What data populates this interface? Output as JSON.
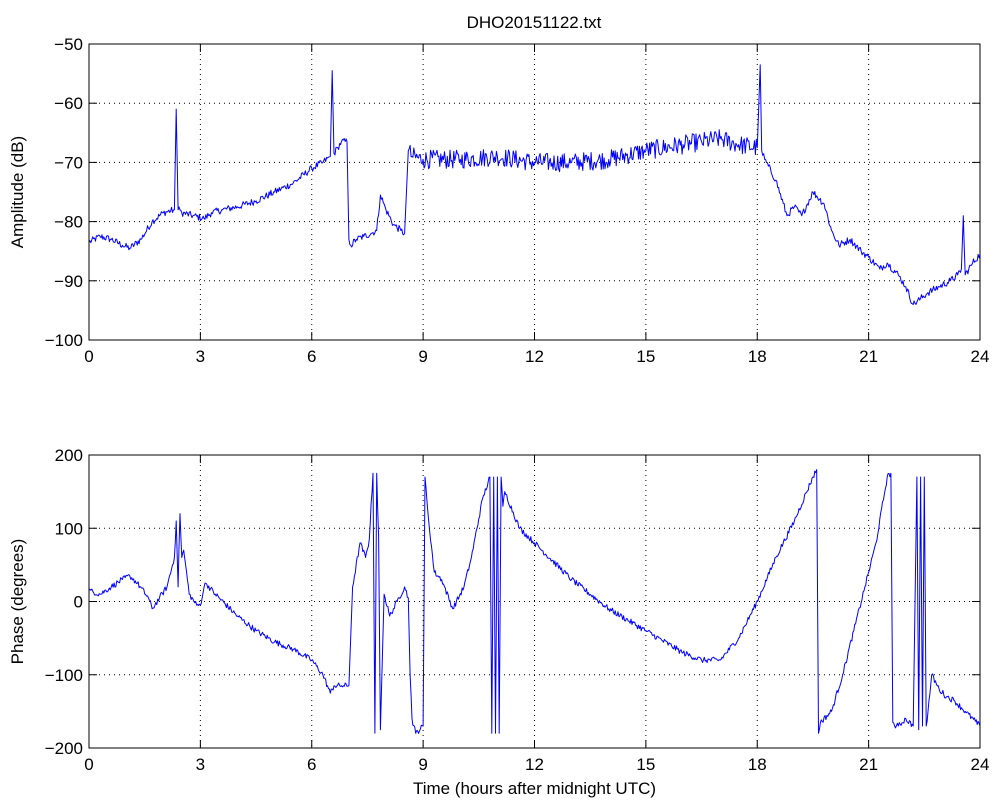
{
  "title": "DHO20151122.txt",
  "colors": {
    "series": "#0000ff",
    "axes": "#000000",
    "background": "#ffffff"
  },
  "chart_data": [
    {
      "type": "line",
      "title": "DHO20151122.txt",
      "xlabel": "",
      "ylabel": "Amplitude (dB)",
      "xlim": [
        0,
        24
      ],
      "ylim": [
        -100,
        -50
      ],
      "xticks": [
        0,
        3,
        6,
        9,
        12,
        15,
        18,
        21,
        24
      ],
      "yticks": [
        -100,
        -90,
        -80,
        -70,
        -60,
        -50
      ],
      "xtick_labels": [
        "0",
        "3",
        "6",
        "9",
        "12",
        "15",
        "18",
        "21",
        "24"
      ],
      "ytick_labels": [
        "−100",
        "−90",
        "−80",
        "−70",
        "−60",
        "−50"
      ],
      "grid": true,
      "series": [
        {
          "x": [
            0,
            0.3,
            0.6,
            0.9,
            1.1,
            1.4,
            1.7,
            2.0,
            2.3,
            2.35,
            2.4,
            2.45,
            2.5,
            2.8,
            3.1,
            3.3,
            3.6,
            4.0,
            4.5,
            5.0,
            5.5,
            6.0,
            6.3,
            6.5,
            6.55,
            6.6,
            6.7,
            6.8,
            6.95,
            7.0,
            7.05,
            7.2,
            7.4,
            7.6,
            7.75,
            7.85,
            8.0,
            8.2,
            8.4,
            8.5,
            8.6,
            8.7,
            9.0,
            10.0,
            11.0,
            12.0,
            13.0,
            14.0,
            15.0,
            16.0,
            16.5,
            17.0,
            17.5,
            18.0,
            18.08,
            18.12,
            18.2,
            18.5,
            18.8,
            19.0,
            19.2,
            19.5,
            19.8,
            20.0,
            20.2,
            20.5,
            20.8,
            21.0,
            21.3,
            21.5,
            21.8,
            22.0,
            22.2,
            22.4,
            22.6,
            22.9,
            23.2,
            23.4,
            23.5,
            23.55,
            23.6,
            23.8,
            24.0
          ],
          "y": [
            -83.5,
            -82.5,
            -83.0,
            -84.0,
            -84.5,
            -83.0,
            -80.0,
            -78.5,
            -78.0,
            -61.0,
            -78.0,
            -78.0,
            -78.5,
            -79.0,
            -79.5,
            -78.5,
            -78.0,
            -77.5,
            -76.5,
            -75.0,
            -73.5,
            -71.0,
            -70.0,
            -69.0,
            -54.5,
            -68.5,
            -67.5,
            -66.5,
            -66.5,
            -83.0,
            -84.0,
            -83.0,
            -82.5,
            -82.0,
            -81.5,
            -75.5,
            -78.0,
            -80.5,
            -81.5,
            -82.0,
            -68.0,
            -69.0,
            -69.5,
            -69.5,
            -69.0,
            -70.0,
            -70.0,
            -69.5,
            -68.0,
            -67.0,
            -66.5,
            -66.0,
            -67.0,
            -67.5,
            -53.5,
            -68.0,
            -69.5,
            -73.0,
            -79.0,
            -77.5,
            -79.0,
            -75.0,
            -77.0,
            -81.5,
            -84.0,
            -83.0,
            -85.0,
            -86.0,
            -88.0,
            -87.0,
            -89.0,
            -91.0,
            -94.0,
            -93.0,
            -92.0,
            -91.0,
            -90.0,
            -89.0,
            -88.0,
            -79.0,
            -89.0,
            -87.0,
            -85.5
          ]
        }
      ]
    },
    {
      "type": "line",
      "title": "",
      "xlabel": "Time (hours after midnight UTC)",
      "ylabel": "Phase (degrees)",
      "xlim": [
        0,
        24
      ],
      "ylim": [
        -200,
        200
      ],
      "xticks": [
        0,
        3,
        6,
        9,
        12,
        15,
        18,
        21,
        24
      ],
      "yticks": [
        -200,
        -100,
        0,
        100,
        200
      ],
      "xtick_labels": [
        "0",
        "3",
        "6",
        "9",
        "12",
        "15",
        "18",
        "21",
        "24"
      ],
      "ytick_labels": [
        "−200",
        "−100",
        "0",
        "100",
        "200"
      ],
      "grid": true,
      "series": [
        {
          "x": [
            0,
            0.3,
            0.6,
            0.9,
            1.1,
            1.3,
            1.6,
            1.7,
            1.9,
            2.1,
            2.3,
            2.35,
            2.4,
            2.45,
            2.5,
            2.55,
            2.7,
            2.9,
            3.0,
            3.1,
            3.15,
            3.4,
            4.0,
            4.5,
            5.0,
            5.5,
            6.0,
            6.3,
            6.5,
            6.6,
            6.8,
            7.0,
            7.1,
            7.3,
            7.45,
            7.55,
            7.65,
            7.7,
            7.75,
            7.8,
            7.85,
            7.95,
            8.1,
            8.3,
            8.5,
            8.6,
            8.65,
            8.7,
            8.8,
            9.0,
            9.05,
            9.1,
            9.15,
            9.3,
            9.5,
            9.8,
            10.1,
            10.3,
            10.6,
            10.8,
            10.85,
            10.9,
            10.95,
            11.0,
            11.05,
            11.1,
            11.15,
            11.2,
            11.6,
            12.0,
            13.0,
            14.0,
            15.0,
            16.0,
            16.5,
            17.0,
            17.5,
            18.0,
            18.5,
            19.0,
            19.5,
            19.6,
            19.65,
            19.7,
            20.0,
            20.3,
            20.6,
            20.9,
            21.2,
            21.5,
            21.6,
            21.65,
            21.7,
            21.8,
            22.0,
            22.2,
            22.3,
            22.35,
            22.4,
            22.45,
            22.5,
            22.55,
            22.6,
            22.7,
            22.9,
            23.1,
            23.3,
            23.6,
            24.0
          ],
          "y": [
            15,
            10,
            20,
            30,
            35,
            25,
            5,
            -10,
            5,
            20,
            60,
            110,
            20,
            120,
            60,
            70,
            10,
            -5,
            -5,
            20,
            25,
            10,
            -20,
            -40,
            -55,
            -65,
            -80,
            -100,
            -125,
            -115,
            -115,
            -115,
            20,
            80,
            60,
            85,
            175,
            -180,
            175,
            90,
            -175,
            10,
            -20,
            0,
            20,
            5,
            -100,
            -160,
            -180,
            -170,
            170,
            140,
            110,
            40,
            30,
            -10,
            20,
            60,
            140,
            170,
            -180,
            170,
            -180,
            170,
            -180,
            170,
            130,
            150,
            100,
            80,
            30,
            -10,
            -40,
            -70,
            -80,
            -80,
            -50,
            0,
            60,
            110,
            170,
            180,
            -180,
            -165,
            -150,
            -100,
            -40,
            20,
            80,
            170,
            175,
            -165,
            -170,
            -170,
            -160,
            -170,
            170,
            -175,
            170,
            -170,
            170,
            -170,
            -150,
            -100,
            -120,
            -130,
            -135,
            -150,
            -170
          ]
        }
      ]
    }
  ]
}
